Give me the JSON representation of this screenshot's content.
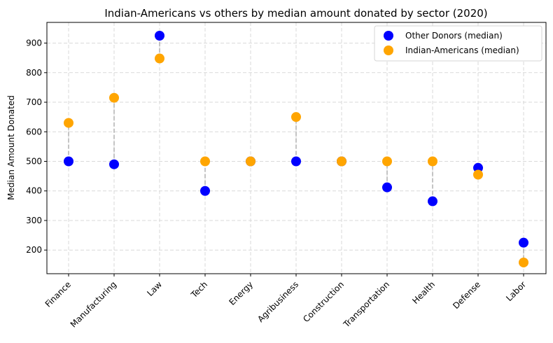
{
  "chart_data": {
    "type": "scatter",
    "title": "Indian-Americans vs others by median amount donated by sector (2020)",
    "xlabel": "",
    "ylabel": "Median Amount Donated",
    "categories": [
      "Finance",
      "Manufacturing",
      "Law",
      "Tech",
      "Energy",
      "Agribusiness",
      "Construction",
      "Transportation",
      "Health",
      "Defense",
      "Labor"
    ],
    "series": [
      {
        "name": "Other Donors (median)",
        "color": "#0000ff",
        "values": [
          500,
          490,
          925,
          400,
          500,
          500,
          500,
          412,
          365,
          478,
          225
        ]
      },
      {
        "name": "Indian-Americans (median)",
        "color": "#ffa500",
        "values": [
          630,
          715,
          848,
          500,
          500,
          650,
          500,
          500,
          500,
          455,
          158
        ]
      }
    ],
    "ylim": [
      120,
      970
    ],
    "yticks": [
      200,
      300,
      400,
      500,
      600,
      700,
      800,
      900
    ],
    "grid": true,
    "legend": "top-right",
    "connector_color": "#b0b0b0"
  }
}
